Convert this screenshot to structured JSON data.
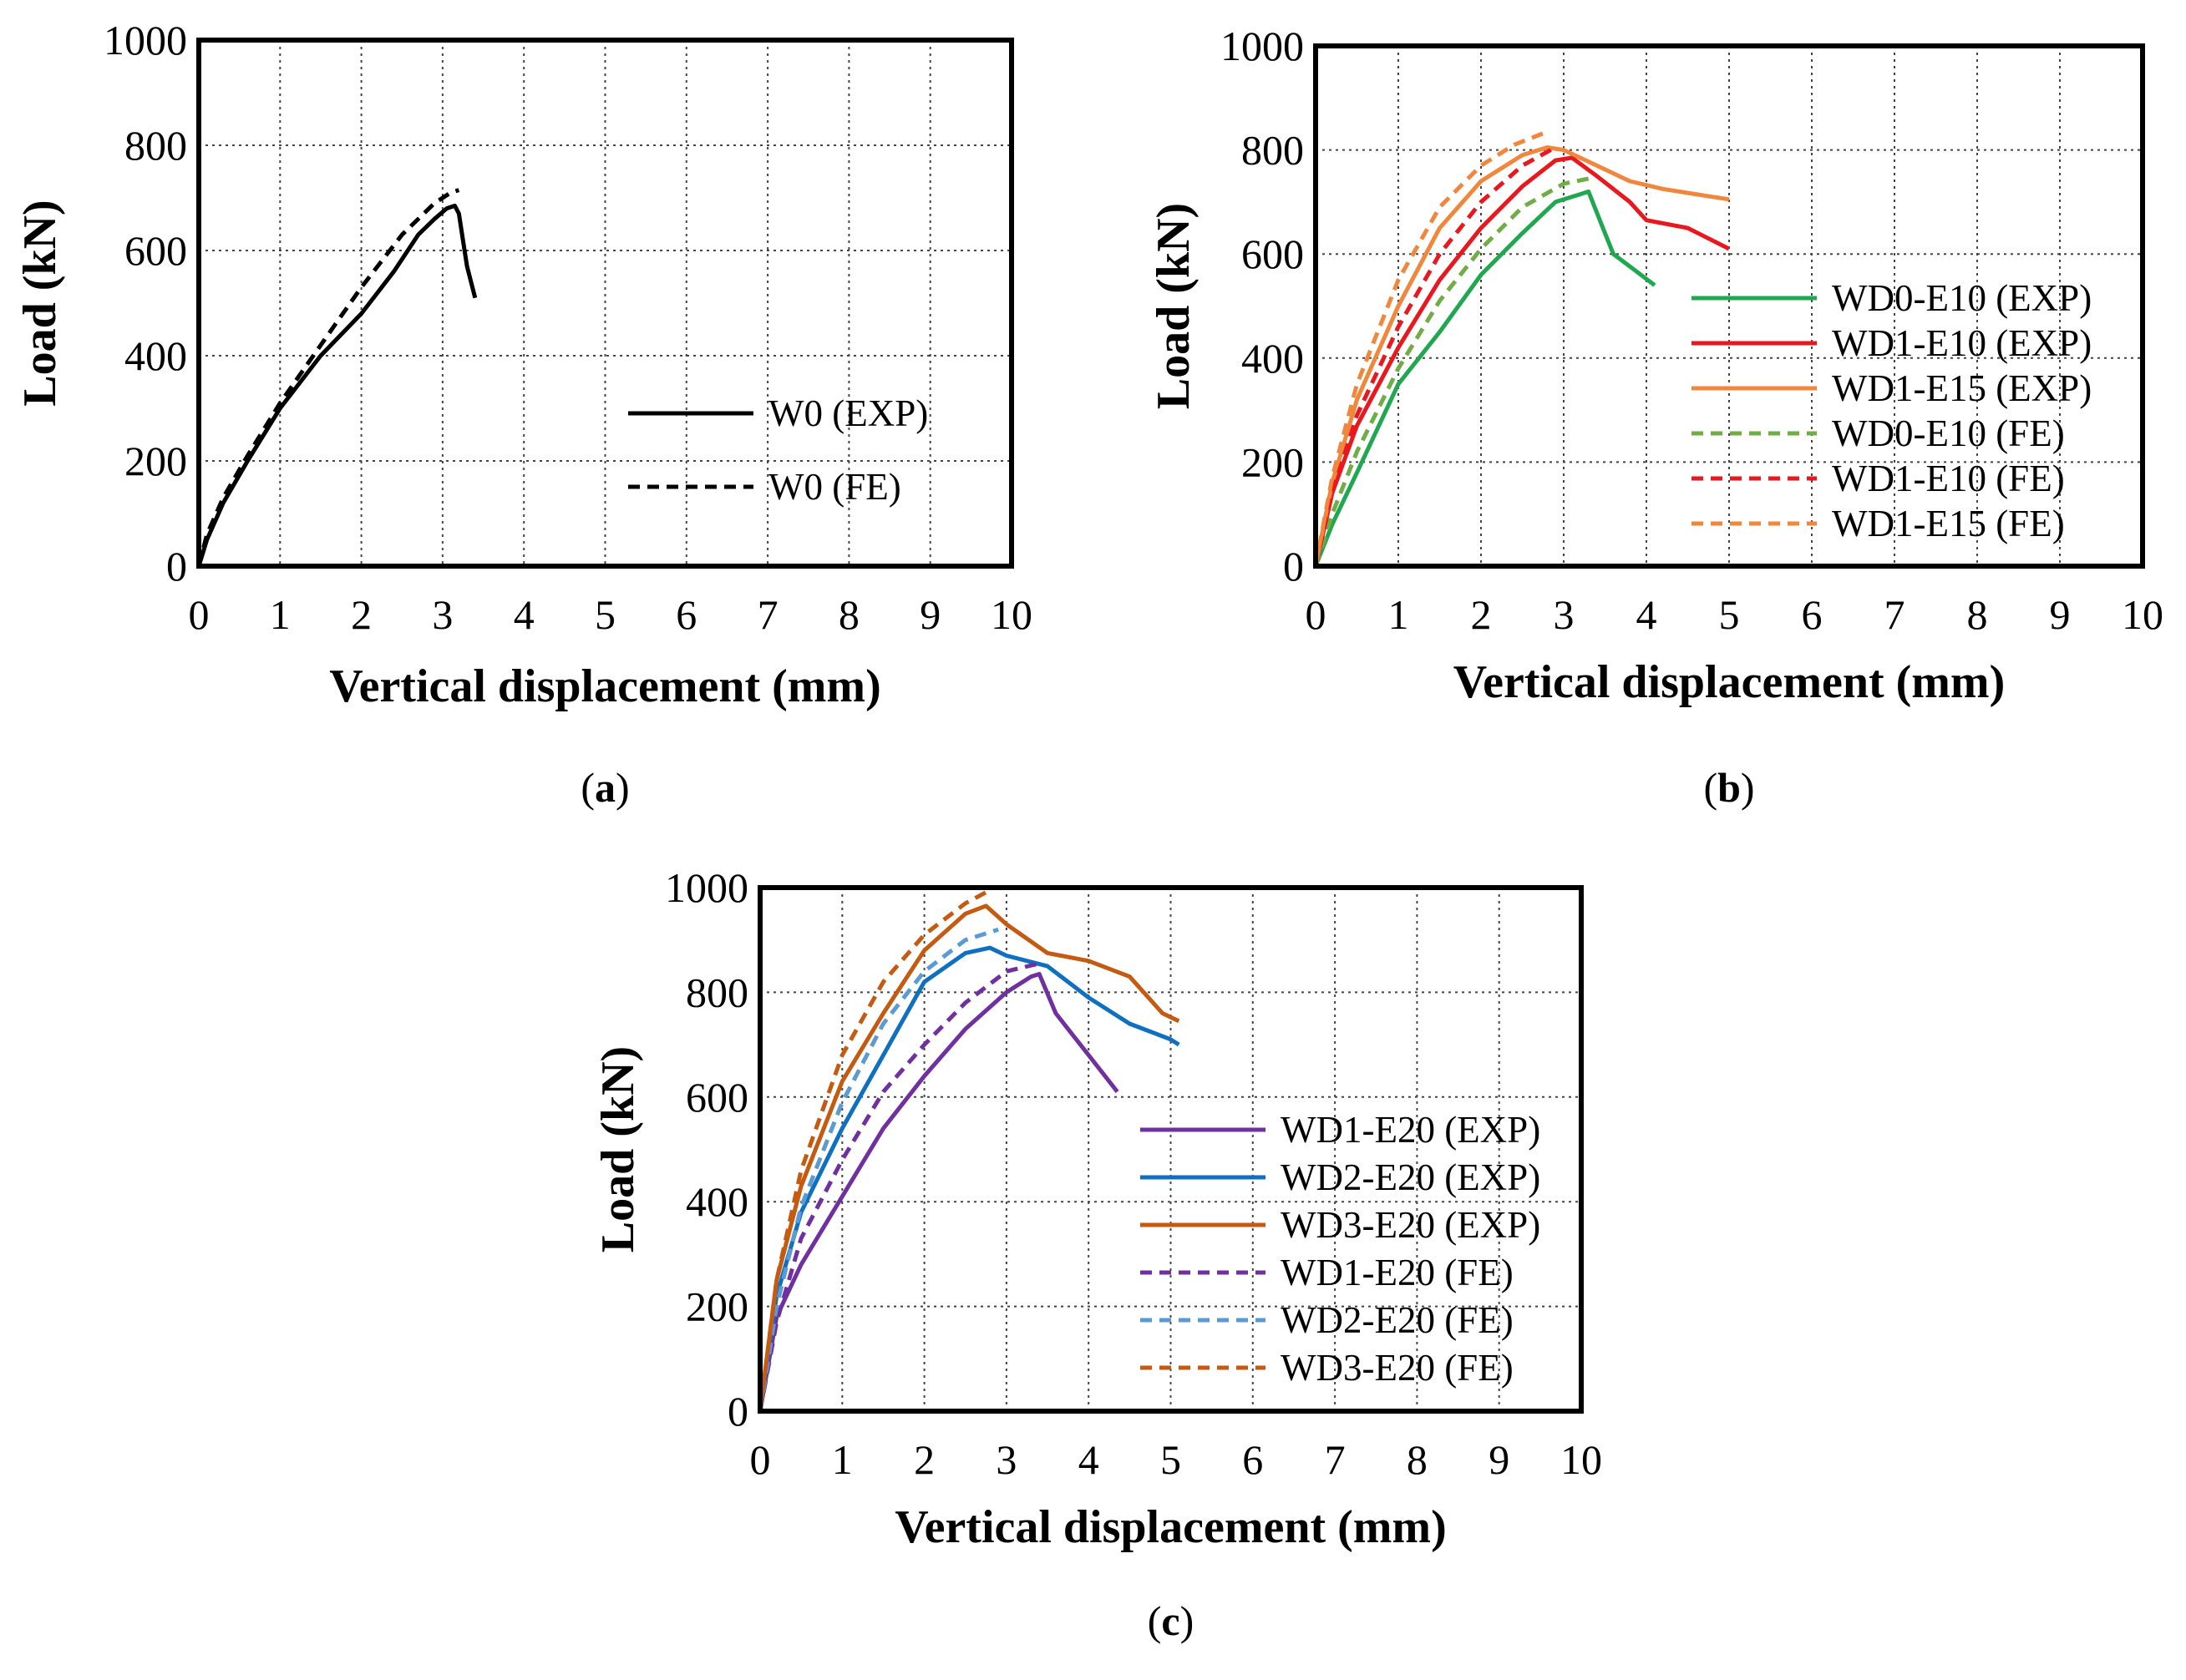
{
  "chart_data": [
    {
      "type": "line",
      "panel_label": "(a)",
      "panel_letter": "a",
      "xlabel": "Vertical displacement  (mm)",
      "ylabel": "Load  (kN)",
      "xlim": [
        0,
        10
      ],
      "ylim": [
        0,
        1000
      ],
      "xticks": [
        0,
        1,
        2,
        3,
        4,
        5,
        6,
        7,
        8,
        9,
        10
      ],
      "yticks": [
        0,
        200,
        400,
        600,
        800,
        1000
      ],
      "grid": true,
      "legend_position": "center-right",
      "series": [
        {
          "name": "W0 (EXP)",
          "color": "#000000",
          "dash": "solid",
          "x": [
            0,
            0.1,
            0.3,
            0.6,
            1.0,
            1.5,
            2.0,
            2.4,
            2.7,
            2.9,
            3.05,
            3.15,
            3.2,
            3.25,
            3.3,
            3.4
          ],
          "y": [
            0,
            50,
            120,
            200,
            300,
            400,
            480,
            560,
            630,
            660,
            680,
            685,
            670,
            620,
            570,
            510
          ]
        },
        {
          "name": "W0 (FE)",
          "color": "#000000",
          "dash": "dashed",
          "x": [
            0,
            0.1,
            0.3,
            0.6,
            1.0,
            1.5,
            2.0,
            2.5,
            2.9,
            3.1,
            3.2
          ],
          "y": [
            0,
            60,
            130,
            210,
            310,
            420,
            530,
            630,
            690,
            710,
            715
          ]
        }
      ]
    },
    {
      "type": "line",
      "panel_label": "(b)",
      "panel_letter": "b",
      "xlabel": "Vertical displacement  (mm)",
      "ylabel": "Load  (kN)",
      "xlim": [
        0,
        10
      ],
      "ylim": [
        0,
        1000
      ],
      "xticks": [
        0,
        1,
        2,
        3,
        4,
        5,
        6,
        7,
        8,
        9,
        10
      ],
      "yticks": [
        0,
        200,
        400,
        600,
        800,
        1000
      ],
      "grid": true,
      "legend_position": "center-right",
      "series": [
        {
          "name": "WD0-E10 (EXP)",
          "color": "#1fa84f",
          "dash": "solid",
          "x": [
            0,
            0.2,
            0.5,
            1.0,
            1.5,
            2.0,
            2.5,
            2.9,
            3.2,
            3.3,
            3.45,
            3.6,
            3.85,
            4.1
          ],
          "y": [
            0,
            80,
            180,
            350,
            450,
            560,
            640,
            700,
            715,
            720,
            660,
            600,
            570,
            540
          ]
        },
        {
          "name": "WD1-E10 (EXP)",
          "color": "#e8181e",
          "dash": "solid",
          "x": [
            0,
            0.2,
            0.5,
            1.0,
            1.5,
            2.0,
            2.5,
            2.9,
            3.1,
            3.4,
            3.8,
            4.0,
            4.5,
            5.0
          ],
          "y": [
            0,
            140,
            270,
            420,
            550,
            650,
            730,
            780,
            785,
            750,
            700,
            665,
            650,
            610
          ]
        },
        {
          "name": "WD1-E15 (EXP)",
          "color": "#f0873c",
          "dash": "solid",
          "x": [
            0,
            0.2,
            0.5,
            1.0,
            1.5,
            2.0,
            2.5,
            2.8,
            3.0,
            3.4,
            3.8,
            4.2,
            4.6,
            5.0
          ],
          "y": [
            0,
            160,
            320,
            500,
            650,
            740,
            790,
            805,
            800,
            770,
            740,
            725,
            715,
            705
          ]
        },
        {
          "name": "WD0-E10 (FE)",
          "color": "#70ad47",
          "dash": "dashed",
          "x": [
            0,
            0.2,
            0.5,
            1.0,
            1.5,
            2.0,
            2.5,
            3.0,
            3.3
          ],
          "y": [
            0,
            100,
            220,
            380,
            510,
            610,
            690,
            735,
            745
          ]
        },
        {
          "name": "WD1-E10 (FE)",
          "color": "#e8181e",
          "dash": "dashed",
          "x": [
            0,
            0.2,
            0.5,
            1.0,
            1.5,
            2.0,
            2.5,
            2.9
          ],
          "y": [
            0,
            140,
            290,
            460,
            600,
            700,
            770,
            805
          ]
        },
        {
          "name": "WD1-E15 (FE)",
          "color": "#f0873c",
          "dash": "dashed",
          "x": [
            0,
            0.2,
            0.5,
            1.0,
            1.5,
            2.0,
            2.4,
            2.8
          ],
          "y": [
            0,
            170,
            350,
            550,
            690,
            770,
            810,
            835
          ]
        }
      ]
    },
    {
      "type": "line",
      "panel_label": "(c)",
      "panel_letter": "c",
      "xlabel": "Vertical displacement  (mm)",
      "ylabel": "Load  (kN)",
      "xlim": [
        0,
        10
      ],
      "ylim": [
        0,
        1000
      ],
      "xticks": [
        0,
        1,
        2,
        3,
        4,
        5,
        6,
        7,
        8,
        9,
        10
      ],
      "yticks": [
        0,
        200,
        400,
        600,
        800,
        1000
      ],
      "grid": true,
      "legend_position": "center-right",
      "series": [
        {
          "name": "WD1-E20 (EXP)",
          "color": "#7030a0",
          "dash": "solid",
          "x": [
            0,
            0.2,
            0.5,
            1.0,
            1.5,
            2.0,
            2.5,
            3.0,
            3.3,
            3.4,
            3.6,
            3.8,
            4.0,
            4.2,
            4.35
          ],
          "y": [
            0,
            180,
            280,
            410,
            540,
            640,
            730,
            800,
            830,
            835,
            760,
            720,
            680,
            640,
            610
          ]
        },
        {
          "name": "WD2-E20 (EXP)",
          "color": "#1070c0",
          "dash": "solid",
          "x": [
            0,
            0.2,
            0.5,
            1.0,
            1.5,
            2.0,
            2.5,
            2.8,
            3.0,
            3.5,
            4.0,
            4.5,
            5.0,
            5.1
          ],
          "y": [
            0,
            220,
            380,
            540,
            680,
            820,
            875,
            885,
            870,
            850,
            790,
            740,
            710,
            700
          ]
        },
        {
          "name": "WD3-E20 (EXP)",
          "color": "#c55a11",
          "dash": "solid",
          "x": [
            0,
            0.2,
            0.5,
            1.0,
            1.5,
            2.0,
            2.5,
            2.75,
            3.0,
            3.5,
            4.0,
            4.5,
            4.9,
            5.1
          ],
          "y": [
            0,
            250,
            430,
            630,
            760,
            880,
            950,
            965,
            930,
            875,
            860,
            830,
            760,
            745
          ]
        },
        {
          "name": "WD1-E20 (FE)",
          "color": "#7030a0",
          "dash": "dashed",
          "x": [
            0,
            0.2,
            0.5,
            1.0,
            1.5,
            2.0,
            2.5,
            3.0,
            3.4
          ],
          "y": [
            0,
            170,
            330,
            480,
            610,
            700,
            780,
            840,
            855
          ]
        },
        {
          "name": "WD2-E20 (FE)",
          "color": "#5b9bd5",
          "dash": "dashed",
          "x": [
            0,
            0.2,
            0.5,
            1.0,
            1.5,
            2.0,
            2.5,
            2.9
          ],
          "y": [
            0,
            200,
            390,
            590,
            740,
            840,
            900,
            920
          ]
        },
        {
          "name": "WD3-E20 (FE)",
          "color": "#c55a11",
          "dash": "dashed",
          "x": [
            0,
            0.2,
            0.5,
            1.0,
            1.5,
            2.0,
            2.5,
            2.8
          ],
          "y": [
            0,
            250,
            460,
            680,
            820,
            910,
            970,
            995
          ]
        }
      ]
    }
  ]
}
